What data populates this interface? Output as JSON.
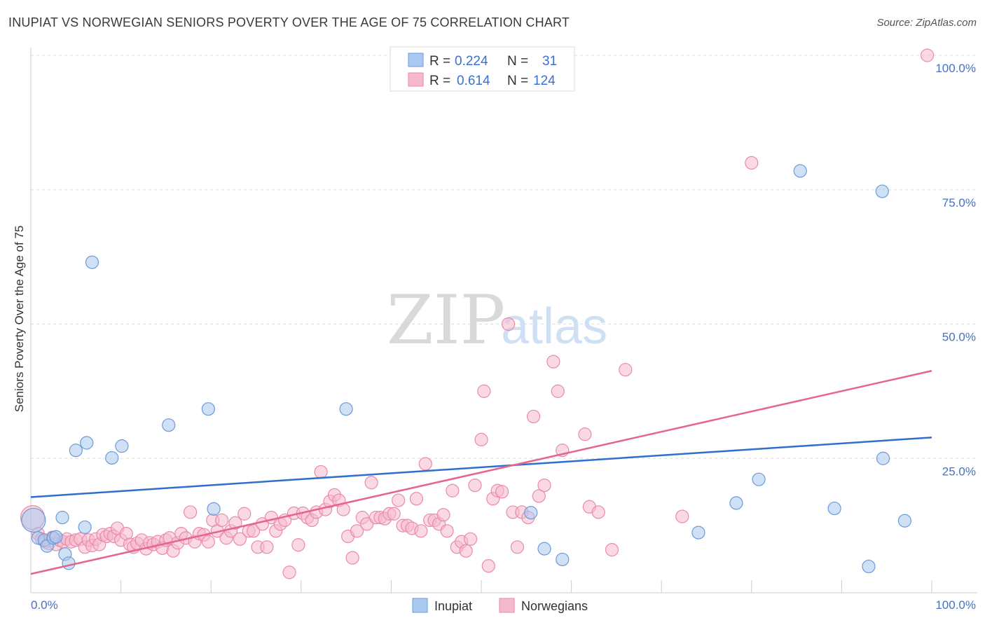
{
  "title": "INUPIAT VS NORWEGIAN SENIORS POVERTY OVER THE AGE OF 75 CORRELATION CHART",
  "source": "Source: ZipAtlas.com",
  "watermark": {
    "zip": "ZIP",
    "atlas": "atlas"
  },
  "colors": {
    "inupiat_fill": "#a9c8ef",
    "inupiat_stroke": "#6a9bd8",
    "inupiat_line": "#2f6fcf",
    "norwegian_fill": "#f6b9cc",
    "norwegian_stroke": "#e98aa9",
    "norwegian_line": "#e46690",
    "tick_text": "#4472c4",
    "grid": "#dddddd"
  },
  "legend": {
    "rows": [
      {
        "r_label": "R =",
        "r_value": "0.224",
        "n_label": "N =",
        "n_value": "31"
      },
      {
        "r_label": "R =",
        "r_value": "0.614",
        "n_label": "N =",
        "n_value": "124"
      }
    ]
  },
  "chart_data": {
    "type": "scatter",
    "ylabel": "Seniors Poverty Over the Age of 75",
    "xlim": [
      0,
      100
    ],
    "ylim": [
      0,
      100
    ],
    "x_tick_labels": [
      "0.0%",
      "100.0%"
    ],
    "y_tick_labels": [
      "25.0%",
      "50.0%",
      "75.0%",
      "100.0%"
    ],
    "y_ticks": [
      25,
      50,
      75,
      100
    ],
    "grid": "dashed horizontal",
    "legend_position": "top-center",
    "series": [
      {
        "name": "Inupiat",
        "trend": {
          "x": [
            0,
            100
          ],
          "y": [
            17.8,
            28.9
          ]
        },
        "points": [
          [
            0.3,
            13.5
          ],
          [
            0.8,
            10.2
          ],
          [
            1.5,
            9.8
          ],
          [
            1.8,
            8.7
          ],
          [
            2.5,
            10.2
          ],
          [
            2.8,
            10.4
          ],
          [
            3.5,
            14.0
          ],
          [
            3.8,
            7.2
          ],
          [
            4.2,
            5.5
          ],
          [
            5.0,
            26.5
          ],
          [
            6.0,
            12.2
          ],
          [
            6.2,
            27.9
          ],
          [
            6.8,
            61.5
          ],
          [
            9.0,
            25.1
          ],
          [
            10.1,
            27.3
          ],
          [
            15.3,
            31.2
          ],
          [
            19.7,
            34.2
          ],
          [
            20.3,
            15.6
          ],
          [
            35.0,
            34.2
          ],
          [
            55.5,
            14.9
          ],
          [
            57.0,
            8.2
          ],
          [
            59.0,
            6.2
          ],
          [
            74.1,
            11.2
          ],
          [
            78.3,
            16.7
          ],
          [
            80.8,
            21.1
          ],
          [
            85.4,
            78.5
          ],
          [
            89.2,
            15.7
          ],
          [
            93.0,
            4.9
          ],
          [
            94.5,
            74.7
          ],
          [
            94.6,
            25.0
          ],
          [
            97.0,
            13.4
          ]
        ]
      },
      {
        "name": "Norwegians",
        "trend": {
          "x": [
            0,
            100
          ],
          "y": [
            3.5,
            41.3
          ]
        },
        "points": [
          [
            0.2,
            14.0
          ],
          [
            0.8,
            11.0
          ],
          [
            1.2,
            10.0
          ],
          [
            1.6,
            9.5
          ],
          [
            2.0,
            9.2
          ],
          [
            2.4,
            10.3
          ],
          [
            2.8,
            9.0
          ],
          [
            3.2,
            9.8
          ],
          [
            3.6,
            9.5
          ],
          [
            4.0,
            10.0
          ],
          [
            4.5,
            9.5
          ],
          [
            5.0,
            9.8
          ],
          [
            5.5,
            10.0
          ],
          [
            6.0,
            8.5
          ],
          [
            6.4,
            9.8
          ],
          [
            6.8,
            8.8
          ],
          [
            7.2,
            10.0
          ],
          [
            7.6,
            9.0
          ],
          [
            8.0,
            10.8
          ],
          [
            8.4,
            10.5
          ],
          [
            8.8,
            11.0
          ],
          [
            9.2,
            10.5
          ],
          [
            9.6,
            12.0
          ],
          [
            10.0,
            9.8
          ],
          [
            10.6,
            11.0
          ],
          [
            11.0,
            9.0
          ],
          [
            11.4,
            8.5
          ],
          [
            11.8,
            9.2
          ],
          [
            12.3,
            9.8
          ],
          [
            12.8,
            8.2
          ],
          [
            13.2,
            9.3
          ],
          [
            13.6,
            9.0
          ],
          [
            14.1,
            9.5
          ],
          [
            14.6,
            8.3
          ],
          [
            15.0,
            9.8
          ],
          [
            15.4,
            10.2
          ],
          [
            15.8,
            7.8
          ],
          [
            16.3,
            9.3
          ],
          [
            16.7,
            11.0
          ],
          [
            17.2,
            10.2
          ],
          [
            17.7,
            15.0
          ],
          [
            18.2,
            9.5
          ],
          [
            18.7,
            11.0
          ],
          [
            19.2,
            10.8
          ],
          [
            19.7,
            9.5
          ],
          [
            20.2,
            13.5
          ],
          [
            20.7,
            11.5
          ],
          [
            21.2,
            13.5
          ],
          [
            21.7,
            10.2
          ],
          [
            22.2,
            11.5
          ],
          [
            22.7,
            13.0
          ],
          [
            23.2,
            10.0
          ],
          [
            23.7,
            14.7
          ],
          [
            24.2,
            11.5
          ],
          [
            24.7,
            11.5
          ],
          [
            25.2,
            8.5
          ],
          [
            25.7,
            12.8
          ],
          [
            26.2,
            8.5
          ],
          [
            26.7,
            14.0
          ],
          [
            27.2,
            11.5
          ],
          [
            27.7,
            12.8
          ],
          [
            28.2,
            13.5
          ],
          [
            28.7,
            3.8
          ],
          [
            29.2,
            14.8
          ],
          [
            29.7,
            8.9
          ],
          [
            30.2,
            14.8
          ],
          [
            30.7,
            14.0
          ],
          [
            31.2,
            13.5
          ],
          [
            31.7,
            15.0
          ],
          [
            32.2,
            22.5
          ],
          [
            32.7,
            15.5
          ],
          [
            33.2,
            17.0
          ],
          [
            33.7,
            18.2
          ],
          [
            34.2,
            17.2
          ],
          [
            34.7,
            15.5
          ],
          [
            35.2,
            10.5
          ],
          [
            35.7,
            6.5
          ],
          [
            36.2,
            11.5
          ],
          [
            36.8,
            14.0
          ],
          [
            37.3,
            12.8
          ],
          [
            37.8,
            20.5
          ],
          [
            38.3,
            14.0
          ],
          [
            38.8,
            14.0
          ],
          [
            39.3,
            13.8
          ],
          [
            39.8,
            14.7
          ],
          [
            40.3,
            14.7
          ],
          [
            40.8,
            17.2
          ],
          [
            41.3,
            12.5
          ],
          [
            41.8,
            12.5
          ],
          [
            42.3,
            12.0
          ],
          [
            42.8,
            17.5
          ],
          [
            43.3,
            11.5
          ],
          [
            43.8,
            24.0
          ],
          [
            44.3,
            13.5
          ],
          [
            44.8,
            13.5
          ],
          [
            45.3,
            12.8
          ],
          [
            45.8,
            14.5
          ],
          [
            46.2,
            11.5
          ],
          [
            46.8,
            19.0
          ],
          [
            47.3,
            8.5
          ],
          [
            47.8,
            9.5
          ],
          [
            48.3,
            7.8
          ],
          [
            48.8,
            10.0
          ],
          [
            49.3,
            20.0
          ],
          [
            50.0,
            28.5
          ],
          [
            50.3,
            37.5
          ],
          [
            50.8,
            5.0
          ],
          [
            51.3,
            17.5
          ],
          [
            51.8,
            19.0
          ],
          [
            52.3,
            18.8
          ],
          [
            53.0,
            50.0
          ],
          [
            53.5,
            15.0
          ],
          [
            54.0,
            8.5
          ],
          [
            54.5,
            15.0
          ],
          [
            55.2,
            14.0
          ],
          [
            55.8,
            32.8
          ],
          [
            56.4,
            18.0
          ],
          [
            57.0,
            20.0
          ],
          [
            58.0,
            43.0
          ],
          [
            58.5,
            37.5
          ],
          [
            59.0,
            26.5
          ],
          [
            61.5,
            29.5
          ],
          [
            62.0,
            16.0
          ],
          [
            63.0,
            15.0
          ],
          [
            64.5,
            8.0
          ],
          [
            66.0,
            41.5
          ],
          [
            72.3,
            14.2
          ],
          [
            80.0,
            80.0
          ],
          [
            99.5,
            100.0
          ]
        ]
      }
    ]
  }
}
